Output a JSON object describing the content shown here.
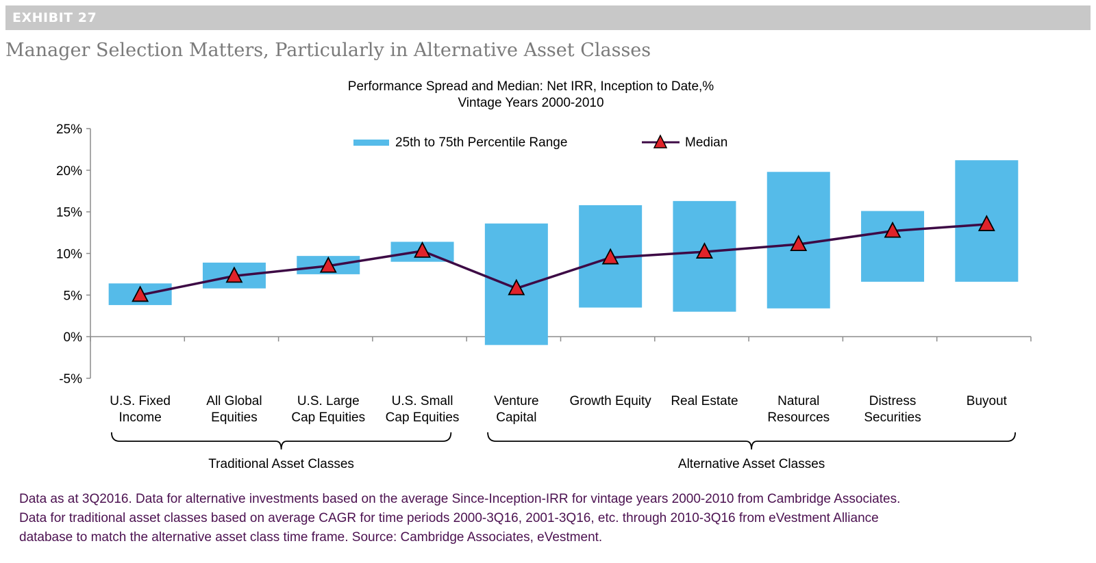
{
  "exhibit": {
    "label": "EXHIBIT 27",
    "title": "Manager Selection Matters, Particularly in Alternative Asset Classes"
  },
  "colors": {
    "range_bar": "#55bbe9",
    "median_line": "#3d0a45",
    "median_marker": "#e0232a",
    "header_bar": "#c8c8c8",
    "note_text": "#4b1150"
  },
  "chart_data": {
    "type": "bar",
    "title": "Performance Spread and Median: Net IRR, Inception to Date,%",
    "subtitle": "Vintage Years 2000-2010",
    "y_ticks": [
      "25%",
      "20%",
      "15%",
      "10%",
      "5%",
      "0%",
      "-5%"
    ],
    "ylim": [
      -5,
      25
    ],
    "categories": [
      [
        "U.S. Fixed",
        "Income"
      ],
      [
        "All Global",
        "Equities"
      ],
      [
        "U.S. Large",
        "Cap Equities"
      ],
      [
        "U.S. Small",
        "Cap Equities"
      ],
      [
        "Venture",
        "Capital"
      ],
      [
        "Growth Equity",
        ""
      ],
      [
        "Real Estate",
        ""
      ],
      [
        "Natural",
        "Resources"
      ],
      [
        "Distress",
        "Securities"
      ],
      [
        "Buyout",
        ""
      ]
    ],
    "series": [
      {
        "name": "25th to 75th Percentile Range",
        "type": "floating-bar",
        "low": [
          3.8,
          5.8,
          7.5,
          9.0,
          -1.0,
          3.5,
          3.0,
          3.4,
          6.6,
          6.6
        ],
        "high": [
          6.4,
          8.9,
          9.7,
          11.4,
          13.6,
          15.8,
          16.3,
          19.8,
          15.1,
          21.2
        ]
      },
      {
        "name": "Median",
        "type": "line",
        "values": [
          5.0,
          7.3,
          8.5,
          10.3,
          5.8,
          9.5,
          10.2,
          11.1,
          12.7,
          13.5
        ]
      }
    ],
    "legend": {
      "range_label": "25th to 75th Percentile Range",
      "median_label": "Median",
      "position": "top-center"
    },
    "groups": [
      {
        "label": "Traditional Asset Classes",
        "from": 0,
        "to": 3
      },
      {
        "label": "Alternative Asset Classes",
        "from": 4,
        "to": 9
      }
    ]
  },
  "notes": [
    "Data as at 3Q2016. Data for alternative investments based on the average Since-Inception-IRR for vintage years 2000-2010 from Cambridge Associates.",
    "Data for traditional asset classes based on average CAGR for time periods 2000-3Q16, 2001-3Q16, etc. through 2010-3Q16 from eVestment Alliance",
    "database to match the alternative asset class time frame. Source: Cambridge Associates, eVestment."
  ]
}
